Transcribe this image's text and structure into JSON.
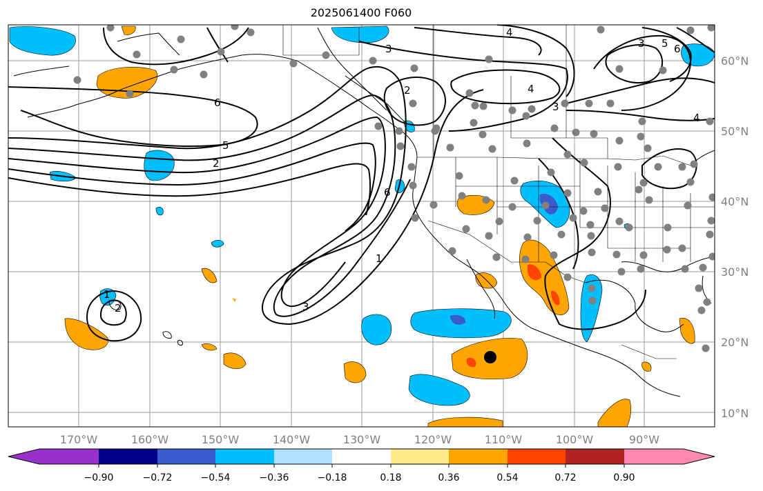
{
  "title": "2025061400 F060",
  "map": {
    "lon_labels": [
      "170°W",
      "160°W",
      "150°W",
      "140°W",
      "130°W",
      "120°W",
      "110°W",
      "100°W",
      "90°W"
    ],
    "lat_labels": [
      "60°N",
      "50°N",
      "40°N",
      "30°N",
      "20°N",
      "10°N"
    ],
    "grid_color": "#9a9a9a",
    "contour_labels": [
      "4",
      "3",
      "3",
      "5",
      "6",
      "2",
      "4",
      "3",
      "4",
      "6",
      "5",
      "2",
      "6",
      "1",
      "3",
      "1",
      "2"
    ],
    "station_marker_color": "#808080",
    "highlight_marker_color": "#000000"
  },
  "colorbar": {
    "colors": [
      "#9932cc",
      "#00008b",
      "#3a5bcc",
      "#00bfff",
      "#b0e0ff",
      "#ffffff",
      "#ffeb8a",
      "#ffa500",
      "#ff4500",
      "#b22222",
      "#ff88b0"
    ],
    "ticks": [
      "−0.90",
      "−0.72",
      "−0.54",
      "−0.36",
      "−0.18",
      "0.18",
      "0.36",
      "0.54",
      "0.72",
      "0.90"
    ],
    "extend": "both"
  }
}
